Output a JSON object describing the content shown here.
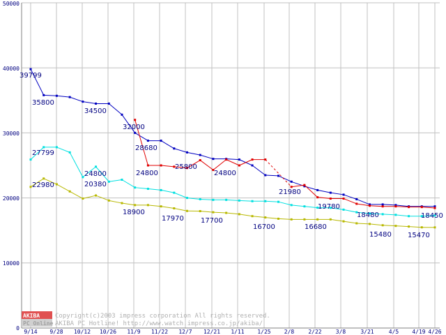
{
  "chart_data": {
    "type": "line",
    "ylim": [
      0,
      50000
    ],
    "yticks": [
      "0",
      "10000",
      "20000",
      "30000",
      "40000",
      "50000"
    ],
    "xtick_labels": [
      "9/14",
      "9/28",
      "10/12",
      "10/26",
      "11/9",
      "11/22",
      "12/7",
      "12/21",
      "1/11",
      "1/25",
      "2/8",
      "2/22",
      "3/8",
      "3/21",
      "4/5",
      "4/19",
      "4/26"
    ],
    "x_count": 32,
    "series": [
      {
        "name": "blue",
        "color": "#0000c0",
        "x": [
          0,
          1,
          2,
          3,
          4,
          5,
          6,
          7,
          8,
          9,
          10,
          11,
          12,
          13,
          14,
          15,
          16,
          17,
          18,
          19,
          20,
          21,
          22,
          23,
          24,
          25,
          26,
          27,
          28,
          29,
          30,
          31
        ],
        "values": [
          39799,
          35800,
          35700,
          35500,
          34800,
          34500,
          34500,
          32800,
          30000,
          28800,
          28800,
          27600,
          27000,
          26600,
          26000,
          26000,
          25900,
          25000,
          23500,
          23400,
          22500,
          21800,
          21200,
          20800,
          20500,
          19800,
          19000,
          19000,
          18900,
          18700,
          18700,
          18700
        ]
      },
      {
        "name": "red",
        "color": "#e00000",
        "x": [
          8,
          9,
          10,
          11,
          12,
          13,
          14,
          15,
          16,
          17,
          18,
          null,
          20,
          21,
          22,
          23,
          24,
          25,
          26,
          27,
          28,
          29,
          30,
          31
        ],
        "values": [
          32000,
          25000,
          25000,
          24800,
          24600,
          25800,
          24300,
          25900,
          25000,
          25900,
          25900,
          null,
          21700,
          21980,
          20100,
          19900,
          19900,
          19100,
          18800,
          18700,
          18700,
          18600,
          18600,
          18450
        ],
        "dashed_segment": [
          18,
          20
        ]
      },
      {
        "name": "cyan",
        "color": "#00e0e0",
        "x": [
          0,
          1,
          2,
          3,
          4,
          5,
          6,
          7,
          8,
          9,
          10,
          11,
          12,
          13,
          14,
          15,
          16,
          17,
          18,
          19,
          20,
          21,
          22,
          23,
          24,
          25,
          26,
          27,
          28,
          29,
          30,
          31
        ],
        "values": [
          25900,
          27799,
          27800,
          27000,
          23200,
          24800,
          22500,
          22800,
          21600,
          21400,
          21200,
          20800,
          20000,
          19800,
          19700,
          19700,
          19600,
          19500,
          19500,
          19400,
          18900,
          18700,
          18500,
          18480,
          18200,
          17800,
          17600,
          17500,
          17400,
          17200,
          17200,
          17300
        ]
      },
      {
        "name": "olive",
        "color": "#b8b800",
        "x": [
          0,
          1,
          2,
          3,
          4,
          5,
          6,
          7,
          8,
          9,
          10,
          11,
          12,
          13,
          14,
          15,
          16,
          17,
          18,
          19,
          20,
          21,
          22,
          23,
          24,
          25,
          26,
          27,
          28,
          29,
          30,
          31
        ],
        "values": [
          21700,
          22980,
          22100,
          21000,
          19900,
          20380,
          19600,
          19200,
          18900,
          18900,
          18700,
          18400,
          18000,
          17970,
          17800,
          17700,
          17500,
          17200,
          17000,
          16800,
          16700,
          16700,
          16700,
          16700,
          16400,
          16100,
          16000,
          15800,
          15700,
          15600,
          15480,
          15470
        ]
      }
    ],
    "annotations": [
      "39799",
      "35800",
      "34500",
      "32000",
      "28680",
      "24800",
      "25800",
      "24800",
      "21980",
      "19780",
      "18480",
      "18450",
      "27799",
      "24800",
      "20380",
      "22980",
      "18900",
      "17970",
      "17700",
      "16700",
      "16680",
      "15480",
      "15470"
    ]
  },
  "watermark": {
    "logo_top": "AKIBA",
    "logo_bottom": "PC Online",
    "line1": "Copyright(c)2003 impress corporation All rights reserved.",
    "line2": "AKIBA PC Hotline!  http://www.watch.impress.co.jp/akiba/"
  }
}
